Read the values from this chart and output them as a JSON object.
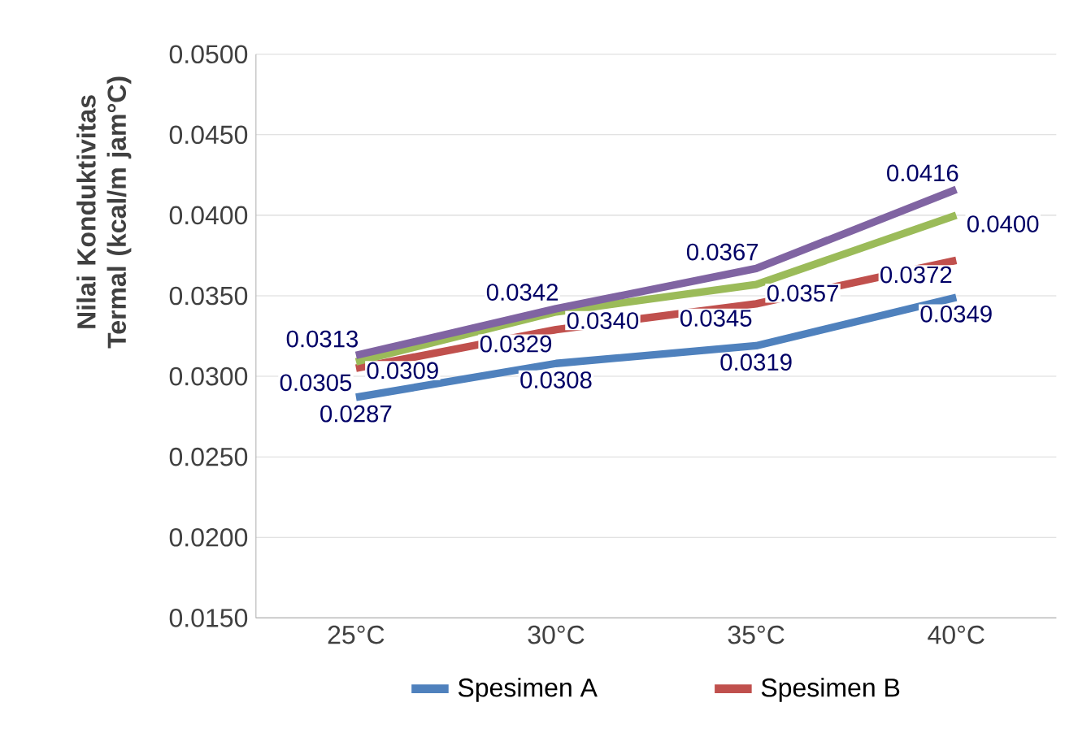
{
  "chart_data": {
    "type": "line",
    "ylabel": "Nilai Konduktivitas Termal (kcal/m jam°C)",
    "categories": [
      "25°C",
      "30°C",
      "35°C",
      "40°C"
    ],
    "series": [
      {
        "name": "Spesimen A",
        "color": "#4f81bd",
        "values": [
          0.0287,
          0.0308,
          0.0319,
          0.0349
        ],
        "value_labels": [
          "0.0287",
          "0.0308",
          "0.0319",
          "0.0349"
        ]
      },
      {
        "name": "Spesimen B",
        "color": "#c0504d",
        "values": [
          0.0305,
          0.0329,
          0.0345,
          0.0372
        ],
        "value_labels": [
          "0.0305",
          "0.0329",
          "0.0345",
          "0.0372"
        ]
      },
      {
        "color": "#9bbb59",
        "values": [
          0.0309,
          0.034,
          0.0357,
          0.04
        ],
        "value_labels": [
          "0.0309",
          "0.0340",
          "0.0357",
          "0.0400"
        ]
      },
      {
        "color": "#8064a2",
        "values": [
          0.0313,
          0.0342,
          0.0367,
          0.0416
        ],
        "value_labels": [
          "0.0313",
          "0.0342",
          "0.0367",
          "0.0416"
        ]
      }
    ],
    "ylim": [
      0.015,
      0.05
    ],
    "yticks": [
      {
        "value": 0.015,
        "label": "0.0150"
      },
      {
        "value": 0.02,
        "label": "0.0200"
      },
      {
        "value": 0.025,
        "label": "0.0250"
      },
      {
        "value": 0.03,
        "label": "0.0300"
      },
      {
        "value": 0.035,
        "label": "0.0350"
      },
      {
        "value": 0.04,
        "label": "0.0400"
      },
      {
        "value": 0.045,
        "label": "0.0450"
      },
      {
        "value": 0.05,
        "label": "0.0500"
      }
    ],
    "grid": "y",
    "legend": "bottom",
    "marker": "none",
    "line_style": "solid"
  }
}
